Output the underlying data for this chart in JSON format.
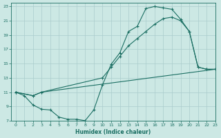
{
  "xlabel": "Humidex (Indice chaleur)",
  "bg_color": "#cce8e4",
  "grid_color": "#aacccc",
  "line_color": "#1a6e62",
  "xlim": [
    -0.5,
    23
  ],
  "ylim": [
    7,
    23.5
  ],
  "xticks": [
    0,
    1,
    2,
    3,
    4,
    5,
    6,
    7,
    8,
    9,
    10,
    11,
    12,
    13,
    14,
    15,
    16,
    17,
    18,
    19,
    20,
    21,
    22,
    23
  ],
  "yticks": [
    7,
    9,
    11,
    13,
    15,
    17,
    19,
    21,
    23
  ],
  "curve1_x": [
    0,
    1,
    2,
    3,
    4,
    5,
    6,
    7,
    8,
    9,
    10,
    11,
    12,
    13,
    14,
    15,
    16,
    17,
    18,
    19,
    20,
    21,
    22,
    23
  ],
  "curve1_y": [
    11.0,
    10.5,
    9.2,
    8.6,
    8.5,
    7.5,
    7.2,
    7.2,
    7.0,
    8.5,
    12.0,
    14.9,
    16.5,
    19.5,
    20.2,
    22.7,
    23.0,
    22.8,
    22.6,
    21.2,
    19.5,
    14.5,
    14.2,
    14.2
  ],
  "curve2_x": [
    0,
    2,
    3,
    10,
    11,
    12,
    13,
    14,
    15,
    16,
    17,
    18,
    19,
    20,
    21,
    22,
    23
  ],
  "curve2_y": [
    11.0,
    10.5,
    11.0,
    13.0,
    14.5,
    16.0,
    17.5,
    18.5,
    19.5,
    20.5,
    21.3,
    21.5,
    21.0,
    19.5,
    14.5,
    14.2,
    14.2
  ],
  "curve3_x": [
    0,
    2,
    3,
    23
  ],
  "curve3_y": [
    11.0,
    10.5,
    11.0,
    14.2
  ]
}
